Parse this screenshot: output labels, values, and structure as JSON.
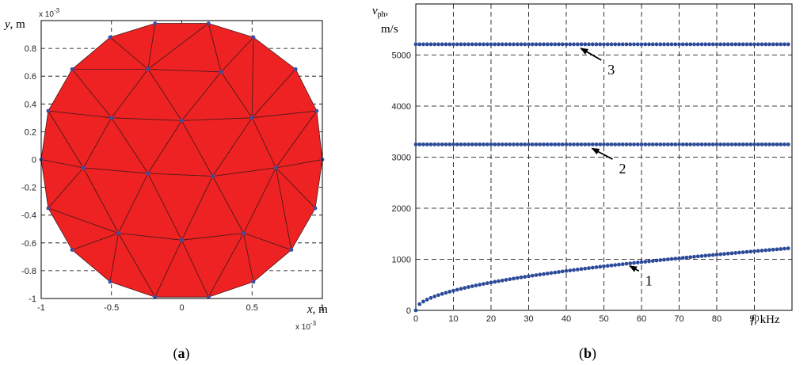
{
  "chart_data": [
    {
      "type": "mesh",
      "panel_label": {
        "open": "(",
        "letter": "a",
        "close": ")"
      },
      "xlabel": {
        "var": "x",
        "unit": ", m"
      },
      "ylabel": {
        "var": "y",
        "unit": ", m"
      },
      "x_multiplier": {
        "base": "x 10",
        "exp": "-3"
      },
      "y_multiplier": {
        "base": "x 10",
        "exp": "-3"
      },
      "xlim": [
        -1.0,
        1.0
      ],
      "ylim": [
        -1.0,
        1.0
      ],
      "x_ticks": [
        -1,
        -0.5,
        0,
        0.5,
        1
      ],
      "x_tick_labels": [
        "-1",
        "-0.5",
        "0",
        "0.5",
        "1"
      ],
      "y_ticks": [
        -1,
        -0.8,
        -0.6,
        -0.4,
        -0.2,
        0,
        0.2,
        0.4,
        0.6,
        0.8
      ],
      "y_tick_labels": [
        "-1",
        "-0.8",
        "-0.6",
        "-0.4",
        "-0.2",
        "0",
        "0.2",
        "0.4",
        "0.6",
        "0.8"
      ],
      "grid": true,
      "fill_color": "#ee2222",
      "edge_color": "#4a1a1a",
      "node_color": "#3a4fa8",
      "nodes": [
        [
          1.0,
          0.0
        ],
        [
          0.96,
          0.35
        ],
        [
          0.81,
          0.65
        ],
        [
          0.51,
          0.88
        ],
        [
          0.19,
          0.98
        ],
        [
          -0.19,
          0.98
        ],
        [
          -0.51,
          0.88
        ],
        [
          -0.78,
          0.65
        ],
        [
          -0.95,
          0.35
        ],
        [
          -1.0,
          0.0
        ],
        [
          -0.95,
          -0.35
        ],
        [
          -0.78,
          -0.65
        ],
        [
          -0.51,
          -0.88
        ],
        [
          -0.19,
          -0.99
        ],
        [
          0.19,
          -0.99
        ],
        [
          0.51,
          -0.88
        ],
        [
          0.78,
          -0.65
        ],
        [
          0.95,
          -0.35
        ],
        [
          -0.5,
          0.3
        ],
        [
          0.0,
          0.28
        ],
        [
          0.5,
          0.3
        ],
        [
          -0.24,
          0.65
        ],
        [
          0.28,
          0.63
        ],
        [
          -0.7,
          -0.06
        ],
        [
          -0.24,
          -0.1
        ],
        [
          0.22,
          -0.12
        ],
        [
          0.67,
          -0.06
        ],
        [
          -0.45,
          -0.53
        ],
        [
          0.0,
          -0.58
        ],
        [
          0.44,
          -0.53
        ]
      ],
      "triangles": [
        [
          4,
          5,
          21
        ],
        [
          4,
          21,
          22
        ],
        [
          3,
          4,
          22
        ],
        [
          5,
          6,
          21
        ],
        [
          6,
          7,
          21
        ],
        [
          7,
          18,
          21
        ],
        [
          7,
          8,
          18
        ],
        [
          21,
          18,
          19
        ],
        [
          21,
          19,
          22
        ],
        [
          22,
          19,
          20
        ],
        [
          3,
          22,
          20
        ],
        [
          2,
          3,
          20
        ],
        [
          1,
          2,
          20
        ],
        [
          1,
          20,
          26
        ],
        [
          0,
          1,
          26
        ],
        [
          8,
          9,
          23
        ],
        [
          8,
          23,
          18
        ],
        [
          18,
          23,
          24
        ],
        [
          18,
          24,
          19
        ],
        [
          19,
          24,
          25
        ],
        [
          19,
          25,
          20
        ],
        [
          20,
          25,
          26
        ],
        [
          0,
          26,
          17
        ],
        [
          9,
          10,
          23
        ],
        [
          10,
          11,
          27
        ],
        [
          10,
          27,
          23
        ],
        [
          23,
          27,
          24
        ],
        [
          24,
          27,
          28
        ],
        [
          24,
          28,
          25
        ],
        [
          25,
          28,
          29
        ],
        [
          25,
          29,
          26
        ],
        [
          26,
          29,
          16
        ],
        [
          26,
          16,
          17
        ],
        [
          11,
          12,
          27
        ],
        [
          12,
          13,
          27
        ],
        [
          13,
          28,
          27
        ],
        [
          13,
          14,
          28
        ],
        [
          14,
          29,
          28
        ],
        [
          14,
          15,
          29
        ],
        [
          15,
          16,
          29
        ]
      ]
    },
    {
      "type": "scatter",
      "panel_label": {
        "open": "(",
        "letter": "b",
        "close": ")"
      },
      "xlabel": {
        "var": "f",
        "unit": ", kHz"
      },
      "ylabel": {
        "var": "v",
        "sub": "ph",
        "unit1": ",",
        "unit2": "m/s"
      },
      "xlim": [
        0,
        100
      ],
      "ylim": [
        0,
        6000
      ],
      "x_ticks": [
        0,
        10,
        20,
        30,
        40,
        50,
        60,
        70,
        80,
        90
      ],
      "x_tick_labels": [
        "0",
        "10",
        "20",
        "30",
        "40",
        "50",
        "60",
        "70",
        "80",
        "90"
      ],
      "y_ticks": [
        0,
        1000,
        2000,
        3000,
        4000,
        5000
      ],
      "y_tick_labels": [
        "0",
        "1000",
        "2000",
        "3000",
        "4000",
        "5000"
      ],
      "grid": true,
      "marker_color": "#2c4a99",
      "series": [
        {
          "mode": 1,
          "x": {
            "start": 0,
            "end": 99,
            "step": 1
          },
          "model": "sqrt",
          "coef": 122
        },
        {
          "mode": 2,
          "x": {
            "start": 0,
            "end": 99,
            "step": 1
          },
          "model": "constant",
          "value": 3250
        },
        {
          "mode": 3,
          "x": {
            "start": 0,
            "end": 99,
            "step": 1
          },
          "model": "constant",
          "value": 5210
        }
      ],
      "annotations": [
        {
          "text": "1",
          "target": [
            56,
            950
          ],
          "label_at": [
            61,
            490
          ]
        },
        {
          "text": "2",
          "target": [
            46,
            3250
          ],
          "label_at": [
            54,
            2680
          ]
        },
        {
          "text": "3",
          "target": [
            43,
            5210
          ],
          "label_at": [
            51,
            4620
          ]
        }
      ]
    }
  ]
}
